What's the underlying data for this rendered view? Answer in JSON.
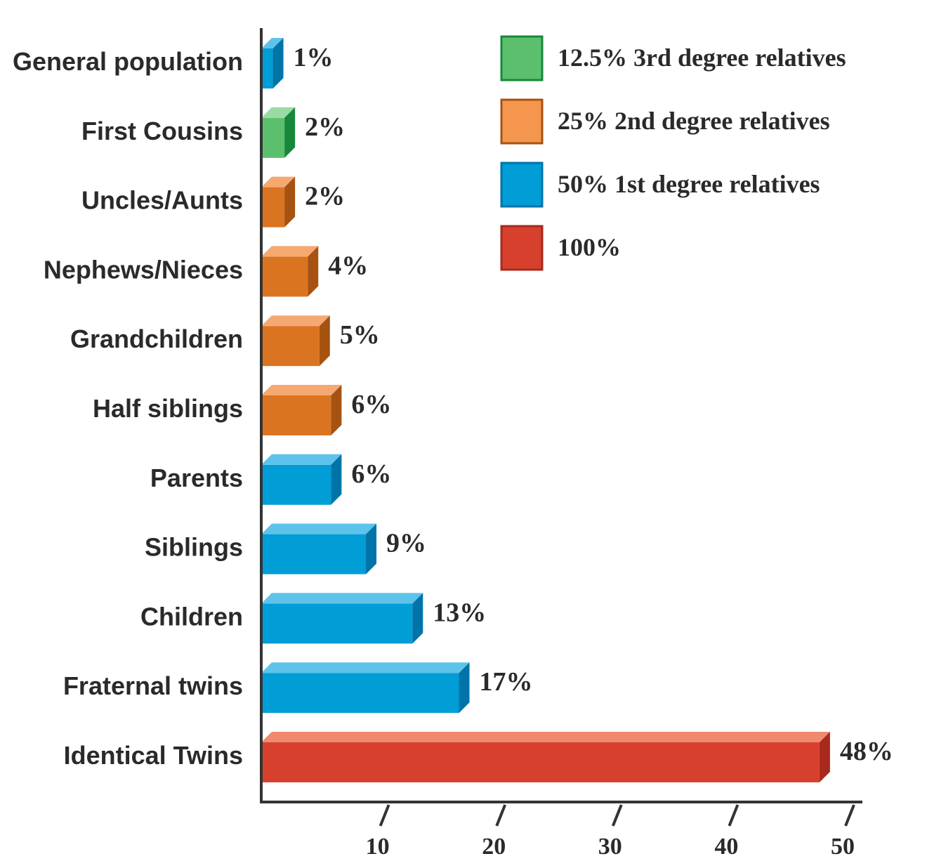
{
  "chart_data": {
    "type": "bar",
    "orientation": "horizontal",
    "title": "",
    "xlabel": "",
    "ylabel": "",
    "xlim": [
      0,
      50
    ],
    "ticks": [
      10,
      20,
      30,
      40,
      50
    ],
    "grid": false,
    "legend_position": "top-right",
    "legend": [
      {
        "key": "g3",
        "label": "12.5% 3rd degree relatives",
        "color": "#5cbf6e"
      },
      {
        "key": "g2",
        "label": "25% 2nd degree relatives",
        "color": "#f5964f"
      },
      {
        "key": "g1",
        "label": "50% 1st degree relatives",
        "color": "#009dd6"
      },
      {
        "key": "g0",
        "label": "100%",
        "color": "#d6402d"
      }
    ],
    "groups": {
      "g3": {
        "front": "#5cbf6e",
        "top": "#9adba4",
        "side": "#17873a"
      },
      "g2": {
        "front": "#db7420",
        "top": "#f6a871",
        "side": "#a65211"
      },
      "g1": {
        "front": "#009dd6",
        "top": "#5ec3ea",
        "side": "#0074a8"
      },
      "g0": {
        "front": "#d6402d",
        "top": "#f08a6e",
        "side": "#a82a1c"
      }
    },
    "categories": [
      "General population",
      "First Cousins",
      "Uncles/Aunts",
      "Nephews/Nieces",
      "Grandchildren",
      "Half siblings",
      "Parents",
      "Siblings",
      "Children",
      "Fraternal twins",
      "Identical Twins"
    ],
    "values": [
      1,
      2,
      2,
      4,
      5,
      6,
      6,
      9,
      13,
      17,
      48
    ],
    "value_labels": [
      "1%",
      "2%",
      "2%",
      "4%",
      "5%",
      "6%",
      "6%",
      "9%",
      "13%",
      "17%",
      "48%"
    ],
    "bar_groups": [
      "g1",
      "g3",
      "g2",
      "g2",
      "g2",
      "g2",
      "g1",
      "g1",
      "g1",
      "g1",
      "g0"
    ]
  }
}
